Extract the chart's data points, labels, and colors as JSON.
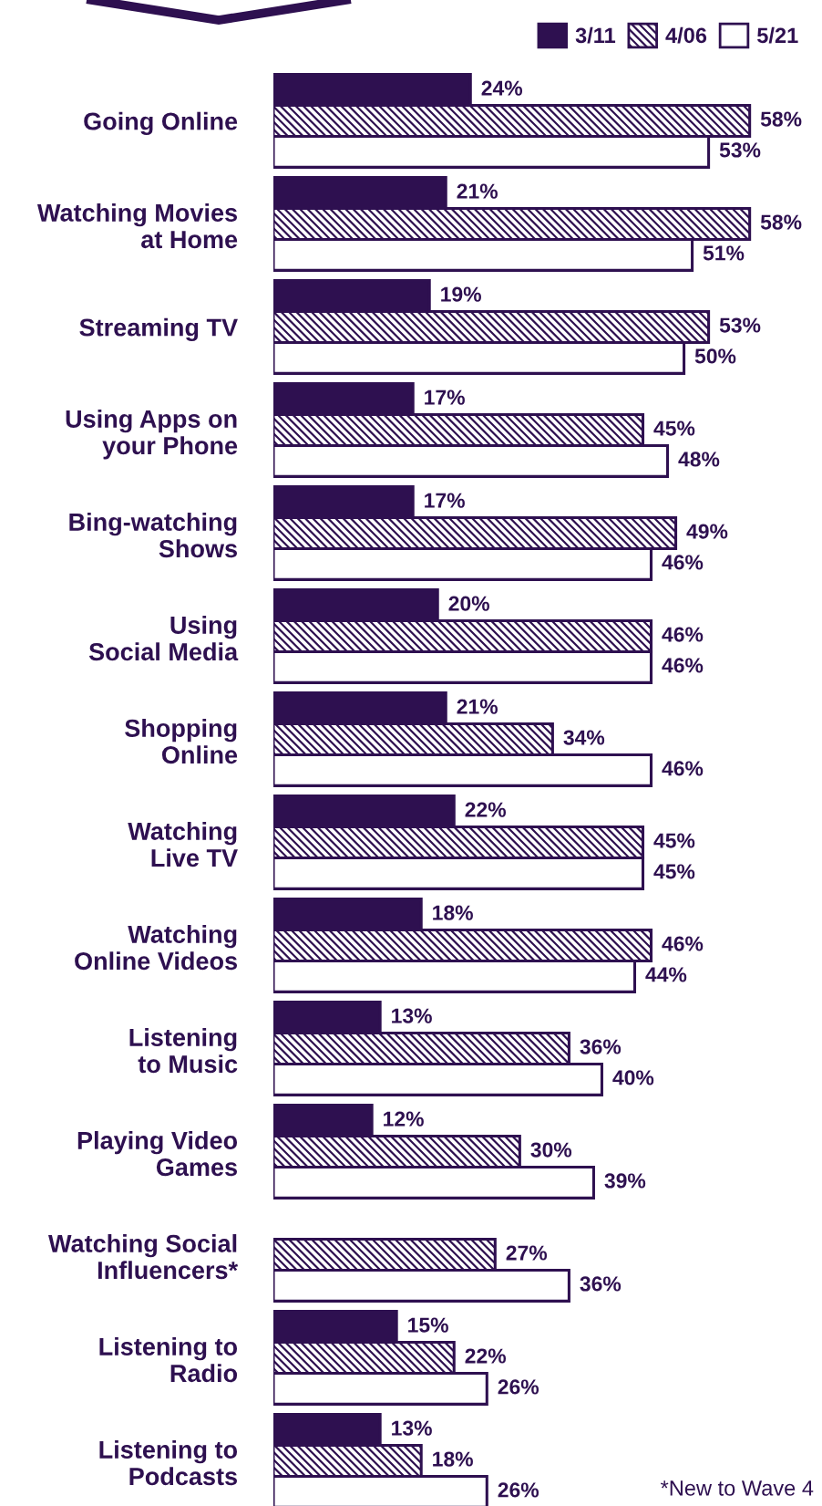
{
  "chart_data": {
    "type": "bar",
    "orientation": "horizontal",
    "categories": [
      "Going Online",
      "Watching Movies\nat Home",
      "Streaming TV",
      "Using Apps on\nyour Phone",
      "Bing-watching\nShows",
      "Using\nSocial Media",
      "Shopping\nOnline",
      "Watching\nLive TV",
      "Watching\nOnline Videos",
      "Listening\nto Music",
      "Playing Video\nGames",
      "Watching Social\nInfluencers*",
      "Listening to\nRadio",
      "Listening to\nPodcasts"
    ],
    "series": [
      {
        "name": "3/11",
        "color": "#2e1050",
        "values": [
          24,
          21,
          19,
          17,
          17,
          20,
          21,
          22,
          18,
          13,
          12,
          null,
          15,
          13
        ],
        "value_labels": [
          "24%",
          "21%",
          "19%",
          "17%",
          "17%",
          "20%",
          "21%",
          "22%",
          "18%",
          "13%",
          "12%",
          null,
          "15%",
          "13%"
        ]
      },
      {
        "name": "4/06",
        "color": "#2e1050",
        "values": [
          58,
          58,
          53,
          45,
          49,
          46,
          34,
          45,
          46,
          36,
          30,
          27,
          22,
          18
        ],
        "value_labels": [
          "58%",
          "58%",
          "53%",
          "45%",
          "49%",
          "46%",
          "34%",
          "45%",
          "46%",
          "36%",
          "30%",
          "27%",
          "22%",
          "18%"
        ]
      },
      {
        "name": "5/21",
        "color": "#ffffff",
        "values": [
          53,
          51,
          50,
          48,
          46,
          46,
          46,
          45,
          44,
          40,
          39,
          36,
          26,
          26
        ],
        "value_labels": [
          "53%",
          "51%",
          "50%",
          "48%",
          "46%",
          "46%",
          "46%",
          "45%",
          "44%",
          "40%",
          "39%",
          "36%",
          "26%",
          "26%"
        ]
      }
    ],
    "legend": "top right",
    "tick_labels": "y",
    "grid": false,
    "annotations": [
      "*New to Wave 4"
    ]
  }
}
